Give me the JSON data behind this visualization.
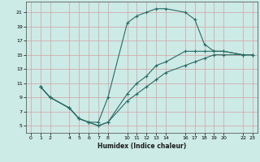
{
  "xlabel": "Humidex (Indice chaleur)",
  "bg_color": "#cceae6",
  "line_color": "#2a6b65",
  "grid_color": "#d4a0a0",
  "xlim": [
    -0.5,
    23.5
  ],
  "ylim": [
    4.0,
    22.5
  ],
  "xticks": [
    0,
    1,
    2,
    4,
    5,
    6,
    7,
    8,
    10,
    11,
    12,
    13,
    14,
    16,
    17,
    18,
    19,
    20,
    22,
    23
  ],
  "yticks": [
    5,
    7,
    9,
    11,
    13,
    15,
    17,
    19,
    21
  ],
  "line1_x": [
    1,
    2,
    4,
    5,
    6,
    7,
    8,
    10,
    11,
    12,
    13,
    14,
    16,
    17,
    18,
    19,
    20,
    22,
    23
  ],
  "line1_y": [
    10.5,
    9.0,
    7.5,
    6.0,
    5.5,
    5.5,
    9.0,
    19.5,
    20.5,
    21.0,
    21.5,
    21.5,
    21.0,
    20.0,
    16.5,
    15.5,
    15.5,
    15.0,
    15.0
  ],
  "line2_x": [
    1,
    2,
    4,
    5,
    6,
    7,
    8,
    10,
    11,
    12,
    13,
    14,
    16,
    17,
    18,
    19,
    20,
    22,
    23
  ],
  "line2_y": [
    10.5,
    9.0,
    7.5,
    6.0,
    5.5,
    5.0,
    5.5,
    9.5,
    11.0,
    12.0,
    13.5,
    14.0,
    15.5,
    15.5,
    15.5,
    15.5,
    15.5,
    15.0,
    15.0
  ],
  "line3_x": [
    1,
    2,
    4,
    5,
    6,
    7,
    8,
    10,
    11,
    12,
    13,
    14,
    16,
    17,
    18,
    19,
    20,
    22,
    23
  ],
  "line3_y": [
    10.5,
    9.0,
    7.5,
    6.0,
    5.5,
    5.0,
    5.5,
    8.5,
    9.5,
    10.5,
    11.5,
    12.5,
    13.5,
    14.0,
    14.5,
    15.0,
    15.0,
    15.0,
    15.0
  ]
}
